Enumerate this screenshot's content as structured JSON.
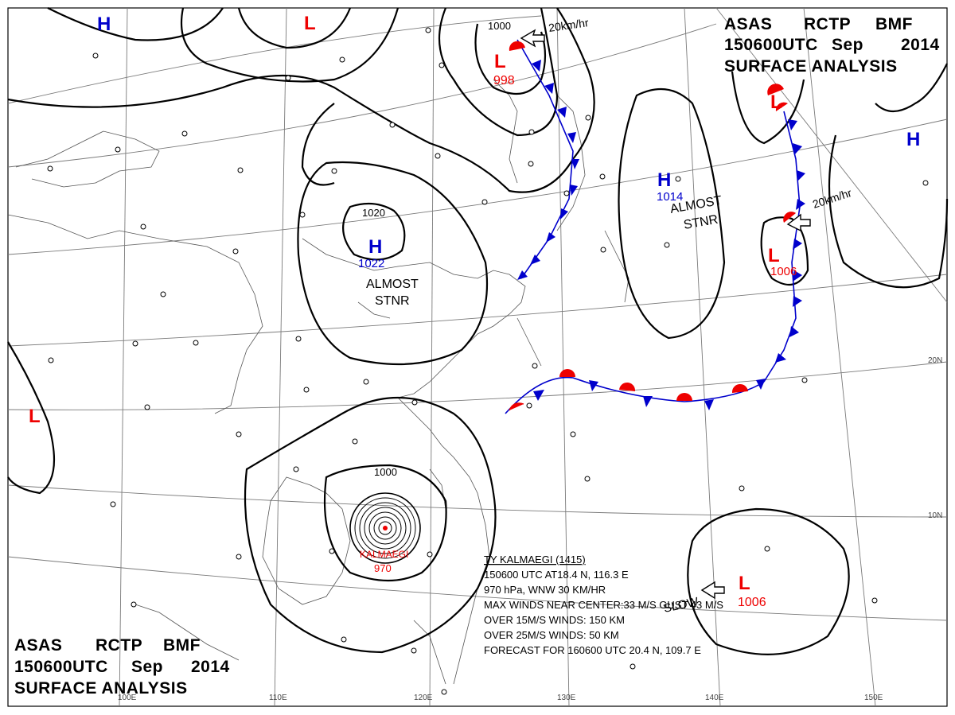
{
  "header_top": {
    "line1_a": "ASAS",
    "line1_b": "RCTP",
    "line1_c": "BMF",
    "line2_a": "150600UTC",
    "line2_b": "Sep",
    "line2_c": "2014",
    "line3": "SURFACE  ANALYSIS"
  },
  "header_bottom": {
    "line1_a": "ASAS",
    "line1_b": "RCTP",
    "line1_c": "BMF",
    "line2_a": "150600UTC",
    "line2_b": "Sep",
    "line2_c": "2014",
    "line3": "SURFACE  ANALYSIS"
  },
  "axis_labels": {
    "lon_100": "100E",
    "lon_110": "110E",
    "lon_120": "120E",
    "lon_130": "130E",
    "lon_140": "140E",
    "lon_150": "150E",
    "lat_20": "20N",
    "lat_10": "10N"
  },
  "pressure_systems": [
    {
      "type": "H",
      "value": ""
    },
    {
      "type": "L",
      "value": ""
    },
    {
      "type": "L",
      "value": "998"
    },
    {
      "type": "H",
      "value": "1022"
    },
    {
      "type": "H",
      "value": "1014"
    },
    {
      "type": "L",
      "value": "1006"
    },
    {
      "type": "L",
      "value": "1006"
    },
    {
      "type": "H",
      "value": ""
    },
    {
      "type": "L",
      "value": ""
    }
  ],
  "isobar_labels": {
    "iso_1000_north": "1000",
    "iso_1020": "1020",
    "iso_1000_typhoon": "1000"
  },
  "notes": {
    "stnr_1": "ALMOST",
    "stnr_1b": "STNR",
    "stnr_2": "ALMOST",
    "stnr_2b": "STNR",
    "motion_1": "20km/hr",
    "motion_2": "20km/hr",
    "slow": "SLOW"
  },
  "typhoon": {
    "name": "KALMAEGI",
    "pressure": "970",
    "info_lines": [
      "TY  KALMAEGI  (1415)",
      "150600 UTC  AT18.4 N, 116.3 E",
      "970 hPa, WNW  30 KM/HR",
      "MAX WINDS NEAR CENTER:33 M/S GUST 43 M/S",
      "OVER 15M/S WINDS: 150 KM",
      "OVER 25M/S WINDS: 50 KM",
      "FORECAST FOR 160600 UTC 20.4 N, 109.7 E"
    ]
  },
  "colors": {
    "high": "#0000cc",
    "low": "#ee0000",
    "isobar": "#000000",
    "coast": "#444444",
    "grid": "#888888"
  }
}
